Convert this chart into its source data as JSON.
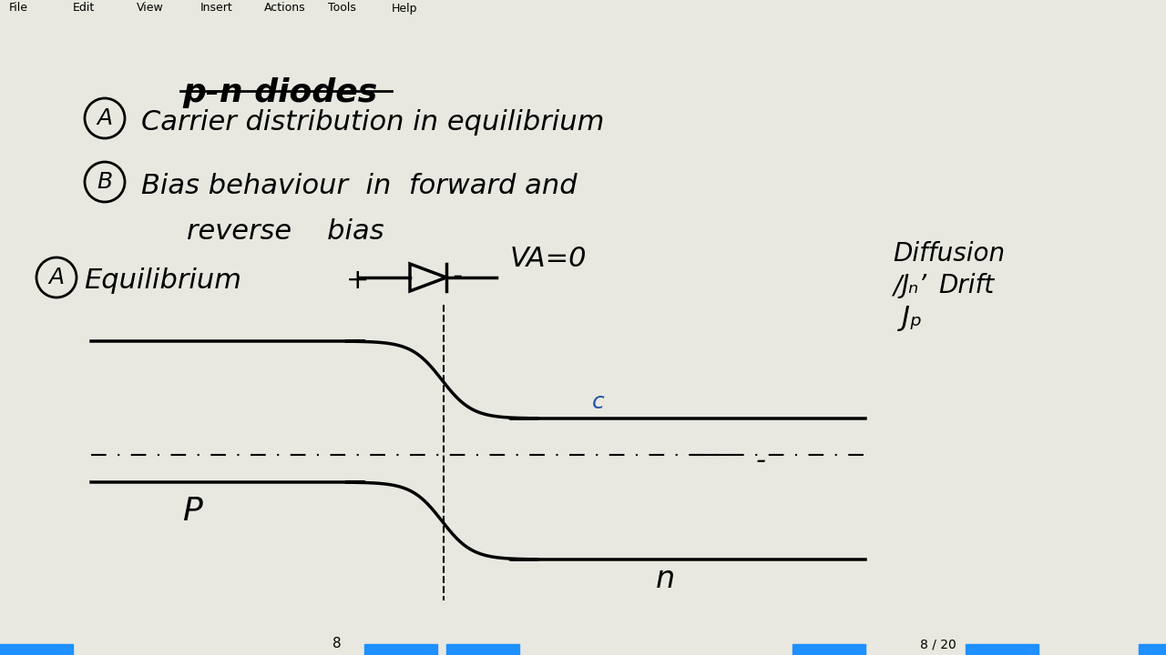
{
  "bg_color": "#e8e8e0",
  "title": "p-n diodes",
  "item_A1": "Carrier distribution in equilibrium",
  "item_B": "Bias behaviour in forward and",
  "item_B2": "reverse   bias",
  "item_A2_label": "Equilibrium",
  "VA_label": "VA=0",
  "diffusion_label": "Diffusion",
  "JN_label": "Jₙ’",
  "drift_label": "Drift",
  "JP_label": "Jₚ",
  "label_P": "P",
  "label_n": "n",
  "label_c": "c",
  "page_num": "8",
  "bottom_bar_color": "#1e90ff"
}
